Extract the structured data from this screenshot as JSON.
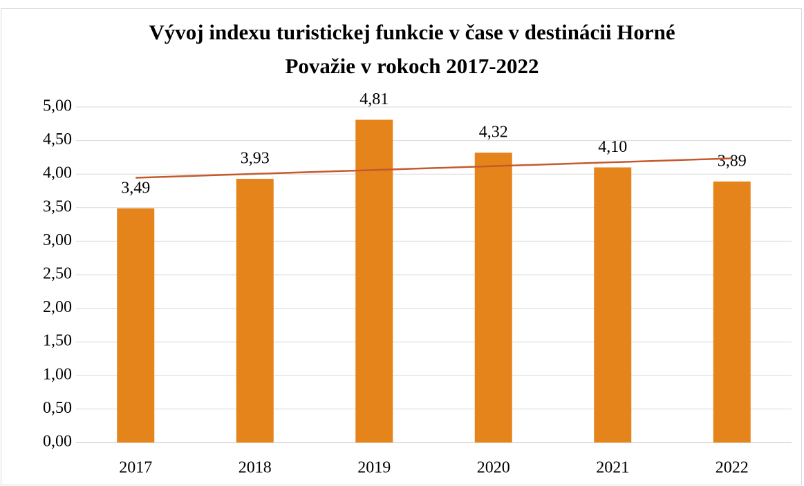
{
  "chart_data": {
    "type": "bar",
    "title": [
      "Vývoj indexu turistickej funkcie v čase v destinácii Horné",
      "Považie v rokoch 2017-2022"
    ],
    "categories": [
      "2017",
      "2018",
      "2019",
      "2020",
      "2021",
      "2022"
    ],
    "values": [
      3.49,
      3.93,
      4.81,
      4.32,
      4.1,
      3.89
    ],
    "value_labels": [
      "3,49",
      "3,93",
      "4,81",
      "4,32",
      "4,10",
      "3,89"
    ],
    "color": "#e5841a",
    "trendline": {
      "type": "linear",
      "color": "#c5592d"
    },
    "ylim": [
      0,
      5
    ],
    "yticks": [
      {
        "value": 0,
        "label": "0,00"
      },
      {
        "value": 0.5,
        "label": "0,50"
      },
      {
        "value": 1,
        "label": "1,00"
      },
      {
        "value": 1.5,
        "label": "1,50"
      },
      {
        "value": 2,
        "label": "2,00"
      },
      {
        "value": 2.5,
        "label": "2,50"
      },
      {
        "value": 3,
        "label": "3,00"
      },
      {
        "value": 3.5,
        "label": "3,50"
      },
      {
        "value": 4,
        "label": "4,00"
      },
      {
        "value": 4.5,
        "label": "4,50"
      },
      {
        "value": 5,
        "label": "5,00"
      }
    ],
    "grid": true
  }
}
